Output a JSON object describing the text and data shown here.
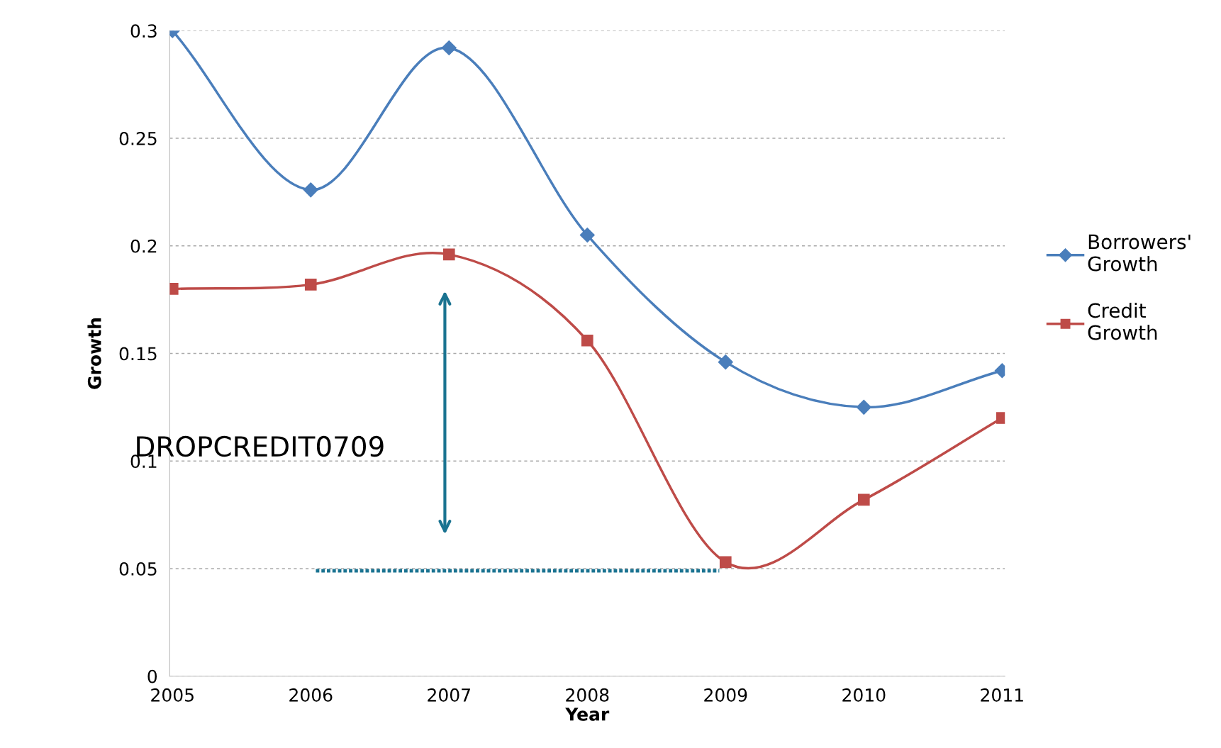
{
  "chart_data": {
    "type": "line",
    "categories": [
      "2005",
      "2006",
      "2007",
      "2008",
      "2009",
      "2010",
      "2011"
    ],
    "xlabel": "Year",
    "ylabel": "Growth",
    "series": [
      {
        "name": "Borrowers' Growth",
        "color": "#4a7ebb",
        "marker": "diamond",
        "values": [
          0.3,
          0.226,
          0.292,
          0.205,
          0.146,
          0.125,
          0.142
        ]
      },
      {
        "name": "Credit Growth",
        "color": "#be4b48",
        "marker": "square",
        "values": [
          0.18,
          0.182,
          0.196,
          0.156,
          0.053,
          0.082,
          0.12
        ]
      }
    ],
    "ylim": [
      0,
      0.3
    ],
    "yticks": [
      0,
      0.05,
      0.1,
      0.15,
      0.2,
      0.25,
      0.3
    ],
    "ref_lines": [
      {
        "axis": "y",
        "value": 0.049,
        "color": "#1a7391",
        "line_style": "dotted"
      }
    ],
    "grid": "y",
    "legend": "right",
    "line_style": "solid",
    "annotations": [
      "DROPCREDIT0709"
    ]
  }
}
